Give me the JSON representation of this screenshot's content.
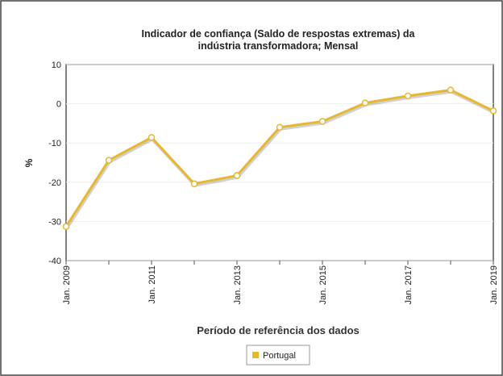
{
  "chart_data": {
    "type": "line",
    "title": "Indicador de confiança (Saldo de respostas extremas) da indústria transformadora; Mensal",
    "x_label": "Período de referência dos dados",
    "y_label": "%",
    "categories": [
      "Jan. 2009",
      null,
      "Jan. 2011",
      null,
      "Jan. 2013",
      null,
      "Jan. 2015",
      null,
      "Jan. 2017",
      null,
      "Jan. 2019"
    ],
    "series": [
      {
        "name": "Portugal",
        "color": "#e8b730",
        "values": [
          -31.3,
          -14.4,
          -8.6,
          -20.4,
          -18.3,
          -6,
          -4.5,
          0.2,
          2,
          3.5,
          -1.8
        ]
      }
    ],
    "ylim": [
      -40,
      10
    ],
    "yticks": [
      -40,
      -30,
      -20,
      -10,
      0,
      10
    ],
    "grid": true,
    "legend": "bottom"
  }
}
